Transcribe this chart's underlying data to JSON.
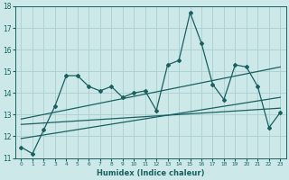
{
  "xlabel": "Humidex (Indice chaleur)",
  "ylabel": "",
  "bg_color": "#cce8e8",
  "line_color": "#1a6060",
  "grid_color": "#aad0d0",
  "x_values": [
    0,
    1,
    2,
    3,
    4,
    5,
    6,
    7,
    8,
    9,
    10,
    11,
    12,
    13,
    14,
    15,
    16,
    17,
    18,
    19,
    20,
    21,
    22,
    23
  ],
  "y_main": [
    11.5,
    11.2,
    12.3,
    13.4,
    14.8,
    14.8,
    14.3,
    14.1,
    14.3,
    13.8,
    14.0,
    14.1,
    13.2,
    15.3,
    15.5,
    17.7,
    16.3,
    14.4,
    13.7,
    15.3,
    15.2,
    14.3,
    12.4,
    13.1
  ],
  "ylim": [
    11,
    18
  ],
  "yticks": [
    11,
    12,
    13,
    14,
    15,
    16,
    17,
    18
  ],
  "xticks": [
    0,
    1,
    2,
    3,
    4,
    5,
    6,
    7,
    8,
    9,
    10,
    11,
    12,
    13,
    14,
    15,
    16,
    17,
    18,
    19,
    20,
    21,
    22,
    23
  ],
  "trend1_x": [
    0,
    23
  ],
  "trend1_y": [
    12.8,
    15.2
  ],
  "trend2_x": [
    0,
    23
  ],
  "trend2_y": [
    12.55,
    13.3
  ],
  "trend3_x": [
    0,
    23
  ],
  "trend3_y": [
    11.9,
    13.8
  ]
}
